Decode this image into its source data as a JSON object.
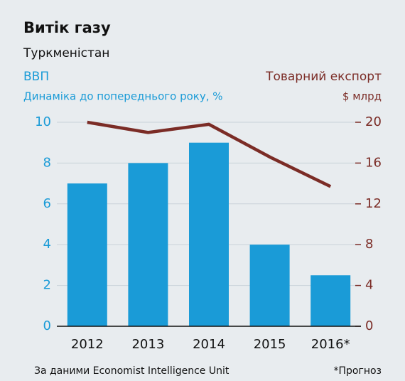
{
  "chart_data": {
    "type": "bar",
    "title": "Витік газу",
    "subtitle": "Туркменістан",
    "ylabel": "ВВП",
    "ylabel_sub": "Динаміка до попереднього року, %",
    "y2label": "Товарний експорт",
    "y2label_sub": "$ млрд",
    "categories": [
      "2012",
      "2013",
      "2014",
      "2015",
      "2016*"
    ],
    "series": [
      {
        "type": "bar",
        "color": "#1a9bd7",
        "values": [
          7,
          8,
          9,
          4,
          2.5
        ]
      },
      {
        "type": "line",
        "axis": "y2",
        "color": "#7b2c26",
        "values": [
          20,
          19,
          19.8,
          16.6,
          13.7
        ]
      }
    ],
    "ylim": [
      0,
      10
    ],
    "yticks": [
      0,
      2,
      4,
      6,
      8,
      10
    ],
    "y2lim": [
      0,
      20
    ],
    "y2ticks": [
      0,
      4,
      8,
      12,
      16,
      20
    ],
    "ytick_color": "#1a9bd7",
    "y2tick_color": "#7b2c26",
    "grid": true,
    "source": "За даними Economist Intelligence Unit",
    "note": "*Прогноз"
  }
}
